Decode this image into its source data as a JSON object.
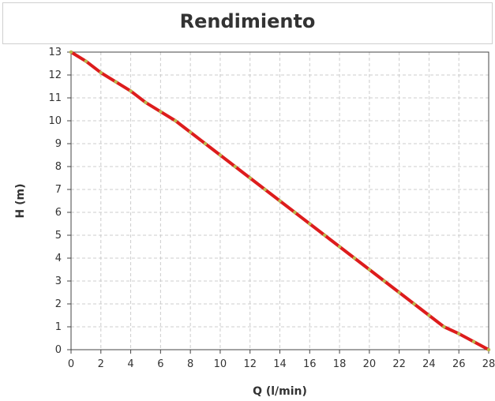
{
  "chart_data": {
    "type": "line",
    "title": "Rendimiento",
    "xlabel": "Q (l/min)",
    "ylabel": "H (m)",
    "xlim": [
      0,
      28
    ],
    "ylim": [
      0,
      13
    ],
    "x_ticks": [
      0,
      2,
      4,
      6,
      8,
      10,
      12,
      14,
      16,
      18,
      20,
      22,
      24,
      26,
      28
    ],
    "y_ticks": [
      0,
      1,
      2,
      3,
      4,
      5,
      6,
      7,
      8,
      9,
      10,
      11,
      12,
      13
    ],
    "grid": true,
    "series": [
      {
        "color": "#dd1c1c",
        "marker_color": "#b8b84a",
        "x": [
          0,
          1,
          2,
          3,
          4,
          5,
          6,
          7,
          8,
          9,
          10,
          11,
          12,
          13,
          14,
          15,
          16,
          17,
          18,
          19,
          20,
          21,
          22,
          23,
          24,
          25,
          26,
          27,
          28
        ],
        "y": [
          13,
          12.6,
          12.1,
          11.7,
          11.3,
          10.8,
          10.4,
          10.0,
          9.5,
          9.0,
          8.5,
          8.0,
          7.5,
          7.0,
          6.5,
          6.0,
          5.5,
          5.0,
          4.5,
          4.0,
          3.5,
          3.0,
          2.5,
          2.0,
          1.5,
          1.0,
          0.7,
          0.35,
          0
        ]
      }
    ]
  }
}
